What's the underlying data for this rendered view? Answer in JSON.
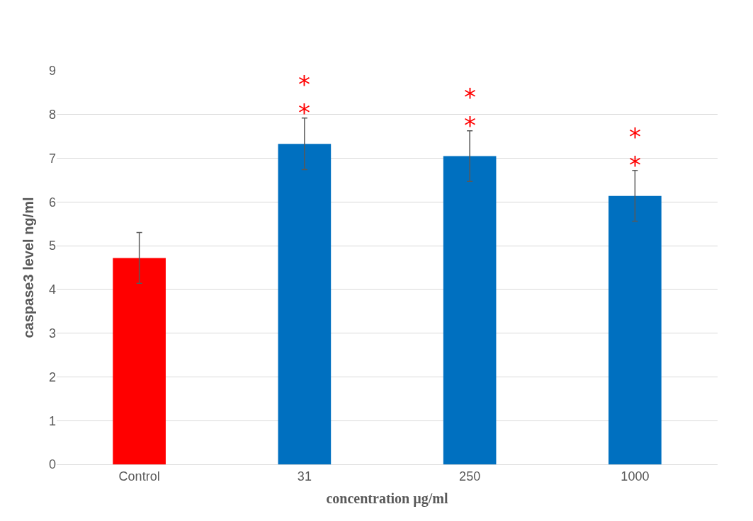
{
  "chart_data": {
    "type": "bar",
    "xlabel": "concentration µg/ml",
    "ylabel": "caspase3 level ng/ml",
    "categories": [
      "Control",
      "31",
      "250",
      "1000"
    ],
    "values": [
      4.72,
      7.33,
      7.05,
      6.14
    ],
    "colors": [
      "#ff0000",
      "#0070c0",
      "#0070c0",
      "#0070c0"
    ],
    "errors": [
      0.58,
      0.59,
      0.58,
      0.58
    ],
    "ylim": [
      0,
      9
    ],
    "yticks": [
      0,
      1,
      2,
      3,
      4,
      5,
      6,
      7,
      8,
      9
    ],
    "grid": "y",
    "annotations": [
      "*",
      "*",
      "*",
      "*",
      "*",
      "*"
    ]
  }
}
